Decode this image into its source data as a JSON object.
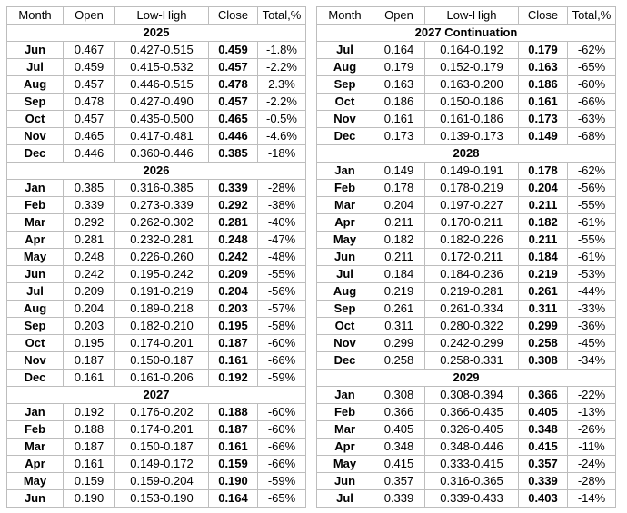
{
  "chart_data": {
    "type": "table",
    "columns": [
      "Month",
      "Open",
      "Low-High",
      "Close",
      "Total,%"
    ],
    "tables": [
      {
        "name": "left-table",
        "sections": [
          {
            "year": "2025",
            "rows": [
              {
                "month": "Jun",
                "open": "0.467",
                "low_high": "0.427-0.515",
                "close": "0.459",
                "total": "-1.8%"
              },
              {
                "month": "Jul",
                "open": "0.459",
                "low_high": "0.415-0.532",
                "close": "0.457",
                "total": "-2.2%"
              },
              {
                "month": "Aug",
                "open": "0.457",
                "low_high": "0.446-0.515",
                "close": "0.478",
                "total": "2.3%"
              },
              {
                "month": "Sep",
                "open": "0.478",
                "low_high": "0.427-0.490",
                "close": "0.457",
                "total": "-2.2%"
              },
              {
                "month": "Oct",
                "open": "0.457",
                "low_high": "0.435-0.500",
                "close": "0.465",
                "total": "-0.5%"
              },
              {
                "month": "Nov",
                "open": "0.465",
                "low_high": "0.417-0.481",
                "close": "0.446",
                "total": "-4.6%"
              },
              {
                "month": "Dec",
                "open": "0.446",
                "low_high": "0.360-0.446",
                "close": "0.385",
                "total": "-18%"
              }
            ]
          },
          {
            "year": "2026",
            "rows": [
              {
                "month": "Jan",
                "open": "0.385",
                "low_high": "0.316-0.385",
                "close": "0.339",
                "total": "-28%"
              },
              {
                "month": "Feb",
                "open": "0.339",
                "low_high": "0.273-0.339",
                "close": "0.292",
                "total": "-38%"
              },
              {
                "month": "Mar",
                "open": "0.292",
                "low_high": "0.262-0.302",
                "close": "0.281",
                "total": "-40%"
              },
              {
                "month": "Apr",
                "open": "0.281",
                "low_high": "0.232-0.281",
                "close": "0.248",
                "total": "-47%"
              },
              {
                "month": "May",
                "open": "0.248",
                "low_high": "0.226-0.260",
                "close": "0.242",
                "total": "-48%"
              },
              {
                "month": "Jun",
                "open": "0.242",
                "low_high": "0.195-0.242",
                "close": "0.209",
                "total": "-55%"
              },
              {
                "month": "Jul",
                "open": "0.209",
                "low_high": "0.191-0.219",
                "close": "0.204",
                "total": "-56%"
              },
              {
                "month": "Aug",
                "open": "0.204",
                "low_high": "0.189-0.218",
                "close": "0.203",
                "total": "-57%"
              },
              {
                "month": "Sep",
                "open": "0.203",
                "low_high": "0.182-0.210",
                "close": "0.195",
                "total": "-58%"
              },
              {
                "month": "Oct",
                "open": "0.195",
                "low_high": "0.174-0.201",
                "close": "0.187",
                "total": "-60%"
              },
              {
                "month": "Nov",
                "open": "0.187",
                "low_high": "0.150-0.187",
                "close": "0.161",
                "total": "-66%"
              },
              {
                "month": "Dec",
                "open": "0.161",
                "low_high": "0.161-0.206",
                "close": "0.192",
                "total": "-59%"
              }
            ]
          },
          {
            "year": "2027",
            "rows": [
              {
                "month": "Jan",
                "open": "0.192",
                "low_high": "0.176-0.202",
                "close": "0.188",
                "total": "-60%"
              },
              {
                "month": "Feb",
                "open": "0.188",
                "low_high": "0.174-0.201",
                "close": "0.187",
                "total": "-60%"
              },
              {
                "month": "Mar",
                "open": "0.187",
                "low_high": "0.150-0.187",
                "close": "0.161",
                "total": "-66%"
              },
              {
                "month": "Apr",
                "open": "0.161",
                "low_high": "0.149-0.172",
                "close": "0.159",
                "total": "-66%"
              },
              {
                "month": "May",
                "open": "0.159",
                "low_high": "0.159-0.204",
                "close": "0.190",
                "total": "-59%"
              },
              {
                "month": "Jun",
                "open": "0.190",
                "low_high": "0.153-0.190",
                "close": "0.164",
                "total": "-65%"
              }
            ]
          }
        ]
      },
      {
        "name": "right-table",
        "sections": [
          {
            "year": "2027 Continuation",
            "rows": [
              {
                "month": "Jul",
                "open": "0.164",
                "low_high": "0.164-0.192",
                "close": "0.179",
                "total": "-62%"
              },
              {
                "month": "Aug",
                "open": "0.179",
                "low_high": "0.152-0.179",
                "close": "0.163",
                "total": "-65%"
              },
              {
                "month": "Sep",
                "open": "0.163",
                "low_high": "0.163-0.200",
                "close": "0.186",
                "total": "-60%"
              },
              {
                "month": "Oct",
                "open": "0.186",
                "low_high": "0.150-0.186",
                "close": "0.161",
                "total": "-66%"
              },
              {
                "month": "Nov",
                "open": "0.161",
                "low_high": "0.161-0.186",
                "close": "0.173",
                "total": "-63%"
              },
              {
                "month": "Dec",
                "open": "0.173",
                "low_high": "0.139-0.173",
                "close": "0.149",
                "total": "-68%"
              }
            ]
          },
          {
            "year": "2028",
            "rows": [
              {
                "month": "Jan",
                "open": "0.149",
                "low_high": "0.149-0.191",
                "close": "0.178",
                "total": "-62%"
              },
              {
                "month": "Feb",
                "open": "0.178",
                "low_high": "0.178-0.219",
                "close": "0.204",
                "total": "-56%"
              },
              {
                "month": "Mar",
                "open": "0.204",
                "low_high": "0.197-0.227",
                "close": "0.211",
                "total": "-55%"
              },
              {
                "month": "Apr",
                "open": "0.211",
                "low_high": "0.170-0.211",
                "close": "0.182",
                "total": "-61%"
              },
              {
                "month": "May",
                "open": "0.182",
                "low_high": "0.182-0.226",
                "close": "0.211",
                "total": "-55%"
              },
              {
                "month": "Jun",
                "open": "0.211",
                "low_high": "0.172-0.211",
                "close": "0.184",
                "total": "-61%"
              },
              {
                "month": "Jul",
                "open": "0.184",
                "low_high": "0.184-0.236",
                "close": "0.219",
                "total": "-53%"
              },
              {
                "month": "Aug",
                "open": "0.219",
                "low_high": "0.219-0.281",
                "close": "0.261",
                "total": "-44%"
              },
              {
                "month": "Sep",
                "open": "0.261",
                "low_high": "0.261-0.334",
                "close": "0.311",
                "total": "-33%"
              },
              {
                "month": "Oct",
                "open": "0.311",
                "low_high": "0.280-0.322",
                "close": "0.299",
                "total": "-36%"
              },
              {
                "month": "Nov",
                "open": "0.299",
                "low_high": "0.242-0.299",
                "close": "0.258",
                "total": "-45%"
              },
              {
                "month": "Dec",
                "open": "0.258",
                "low_high": "0.258-0.331",
                "close": "0.308",
                "total": "-34%"
              }
            ]
          },
          {
            "year": "2029",
            "rows": [
              {
                "month": "Jan",
                "open": "0.308",
                "low_high": "0.308-0.394",
                "close": "0.366",
                "total": "-22%"
              },
              {
                "month": "Feb",
                "open": "0.366",
                "low_high": "0.366-0.435",
                "close": "0.405",
                "total": "-13%"
              },
              {
                "month": "Mar",
                "open": "0.405",
                "low_high": "0.326-0.405",
                "close": "0.348",
                "total": "-26%"
              },
              {
                "month": "Apr",
                "open": "0.348",
                "low_high": "0.348-0.446",
                "close": "0.415",
                "total": "-11%"
              },
              {
                "month": "May",
                "open": "0.415",
                "low_high": "0.333-0.415",
                "close": "0.357",
                "total": "-24%"
              },
              {
                "month": "Jun",
                "open": "0.357",
                "low_high": "0.316-0.365",
                "close": "0.339",
                "total": "-28%"
              },
              {
                "month": "Jul",
                "open": "0.339",
                "low_high": "0.339-0.433",
                "close": "0.403",
                "total": "-14%"
              }
            ]
          }
        ]
      }
    ],
    "layout": {
      "border_color": "#bdbdbd",
      "background_color": "#ffffff",
      "text_color": "#000000",
      "bold_columns": [
        "Month",
        "Close"
      ]
    }
  }
}
